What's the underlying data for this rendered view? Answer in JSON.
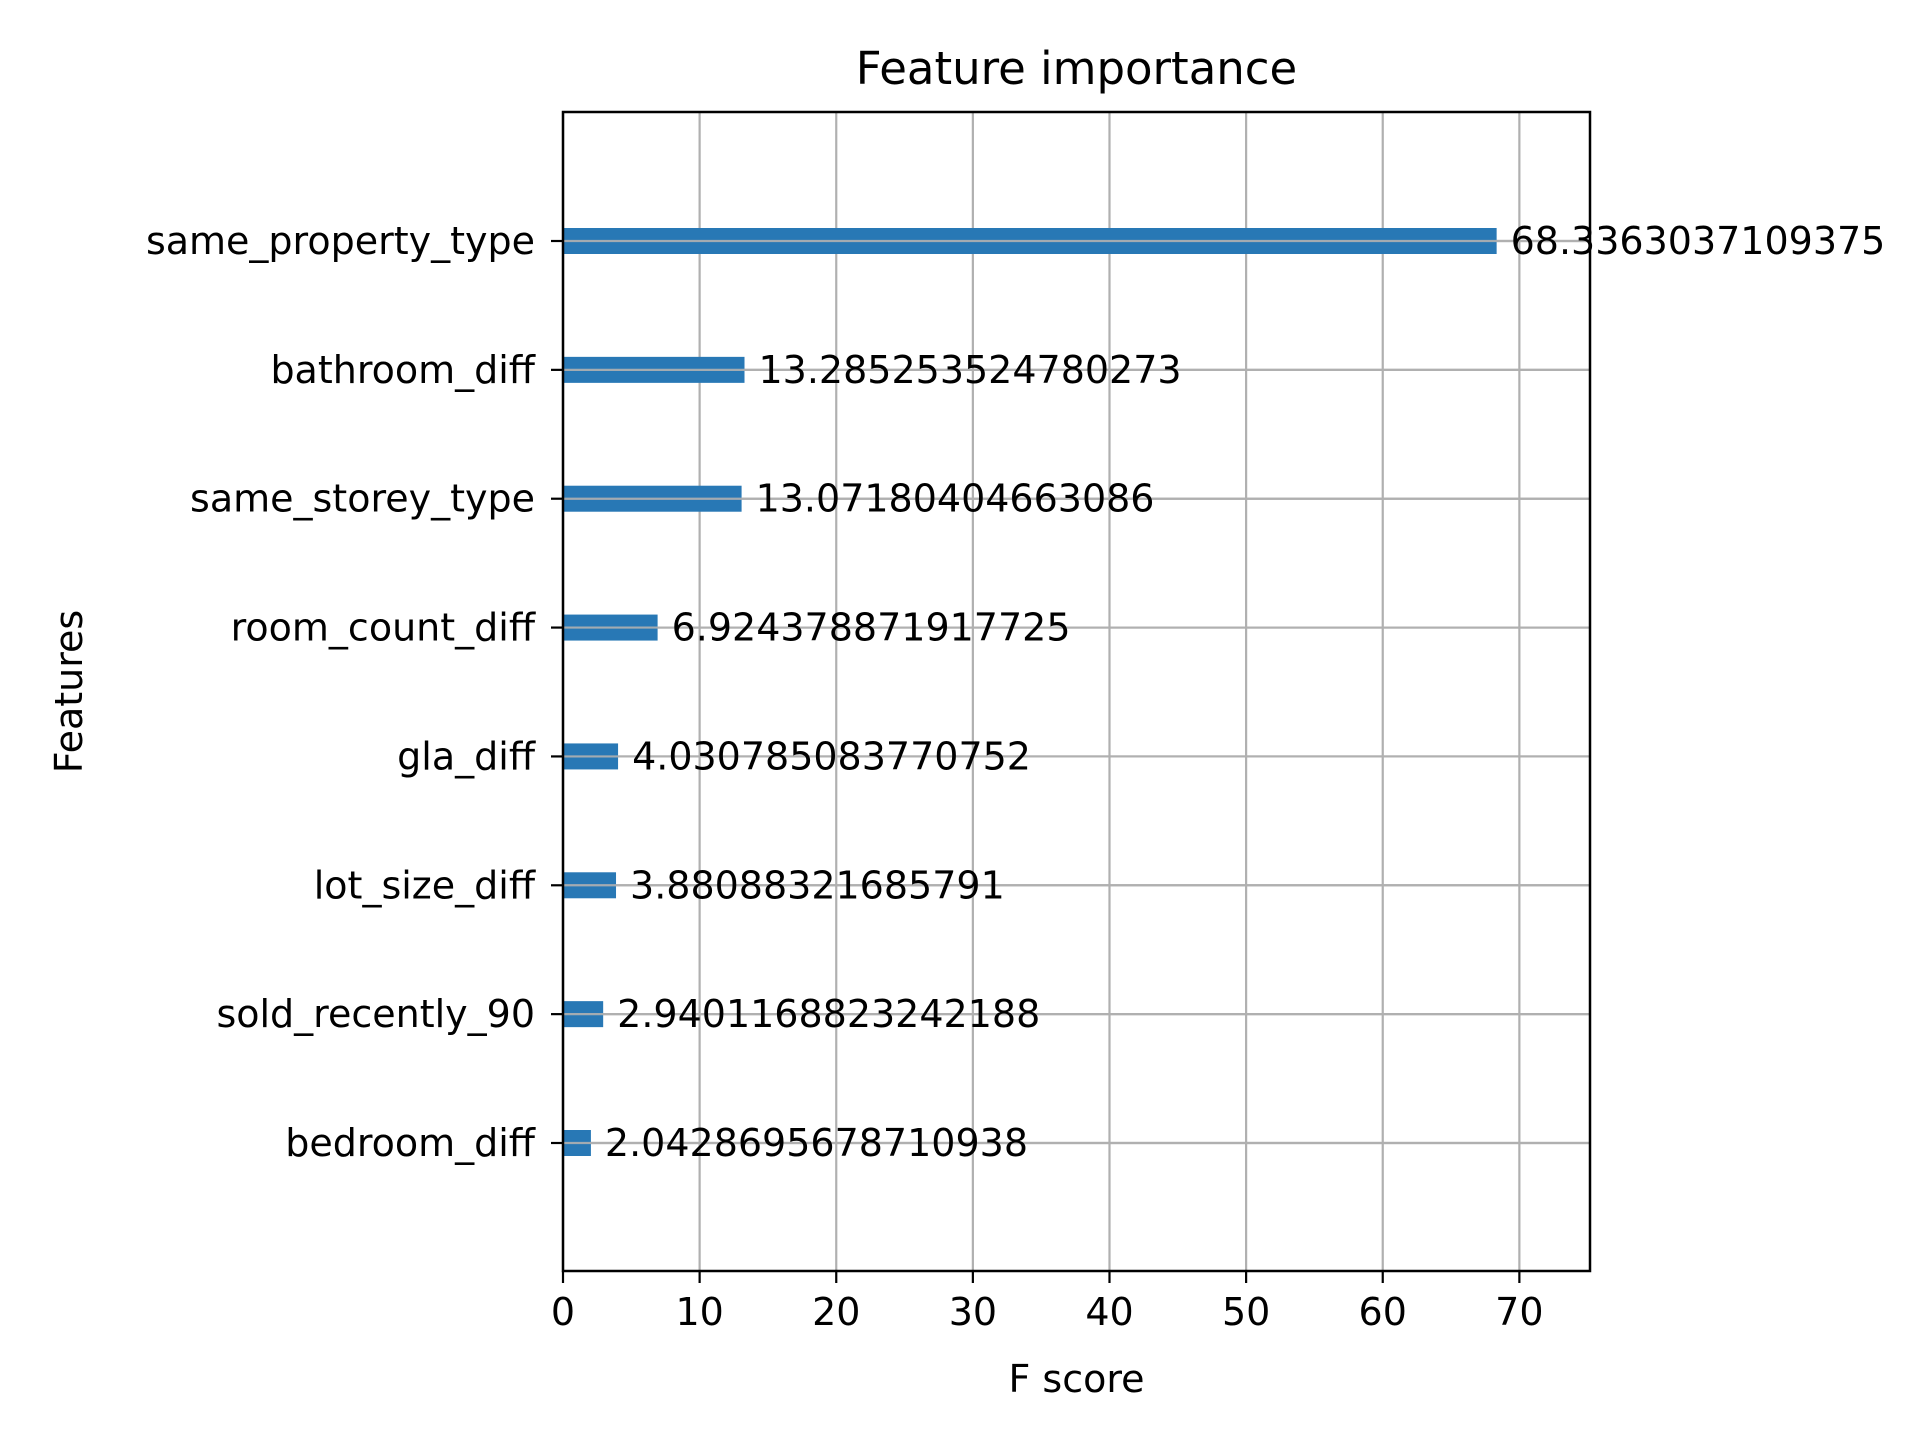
{
  "chart_data": {
    "type": "bar",
    "orientation": "horizontal",
    "title": "Feature importance",
    "xlabel": "F score",
    "ylabel": "Features",
    "categories": [
      "same_property_type",
      "bathroom_diff",
      "same_storey_type",
      "room_count_diff",
      "gla_diff",
      "lot_size_diff",
      "sold_recently_90",
      "bedroom_diff"
    ],
    "values": [
      68.3363037109375,
      13.285253524780273,
      13.07180404663086,
      6.924378871917725,
      4.030785083770752,
      3.88088321685791,
      2.9401168823242188,
      2.0428695678710938
    ],
    "value_labels": [
      "68.3363037109375",
      "13.285253524780273",
      "13.07180404663086",
      "6.924378871917725",
      "4.030785083770752",
      "3.88088321685791",
      "2.9401168823242188",
      "2.0428695678710938"
    ],
    "xticks": [
      0,
      10,
      20,
      30,
      40,
      50,
      60,
      70
    ],
    "xlim": [
      0,
      75.17
    ],
    "grid": true,
    "colors": {
      "bar": "#2878b5",
      "grid": "#b0b0b0",
      "axis": "#000000"
    }
  }
}
